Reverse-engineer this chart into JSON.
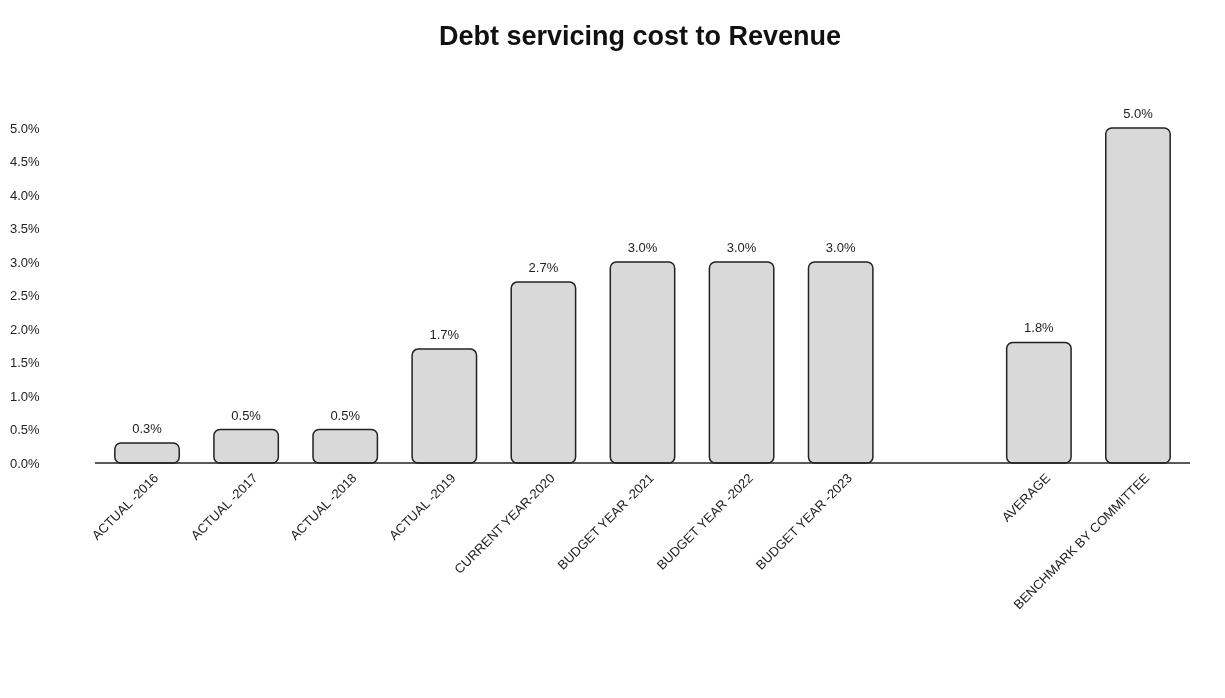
{
  "chart_data": {
    "type": "bar",
    "title": "Debt servicing cost to Revenue",
    "categories": [
      "ACTUAL -2016",
      "ACTUAL -2017",
      "ACTUAL -2018",
      "ACTUAL -2019",
      "CURRENT YEAR-2020",
      "BUDGET YEAR -2021",
      "BUDGET YEAR -2022",
      "BUDGET YEAR -2023",
      null,
      "AVERAGE",
      "BENCHMARK BY COMMITTEE"
    ],
    "values": [
      0.3,
      0.5,
      0.5,
      1.7,
      2.7,
      3.0,
      3.0,
      3.0,
      null,
      1.8,
      5.0
    ],
    "value_labels": [
      "0.3%",
      "0.5%",
      "0.5%",
      "1.7%",
      "2.7%",
      "3.0%",
      "3.0%",
      "3.0%",
      null,
      "1.8%",
      "5.0%"
    ],
    "color": "#d9d9d9",
    "ylim": [
      0,
      5
    ],
    "yticks": [
      {
        "value": 0,
        "label": "0.0%"
      },
      {
        "value": 0.5,
        "label": "0.5%"
      },
      {
        "value": 1,
        "label": "1.0%"
      },
      {
        "value": 1.5,
        "label": "1.5%"
      },
      {
        "value": 2,
        "label": "2.0%"
      },
      {
        "value": 2.5,
        "label": "2.5%"
      },
      {
        "value": 3,
        "label": "3.0%"
      },
      {
        "value": 3.5,
        "label": "3.5%"
      },
      {
        "value": 4,
        "label": "4.0%"
      },
      {
        "value": 4.5,
        "label": "4.5%"
      },
      {
        "value": 5,
        "label": "5.0%"
      }
    ]
  }
}
